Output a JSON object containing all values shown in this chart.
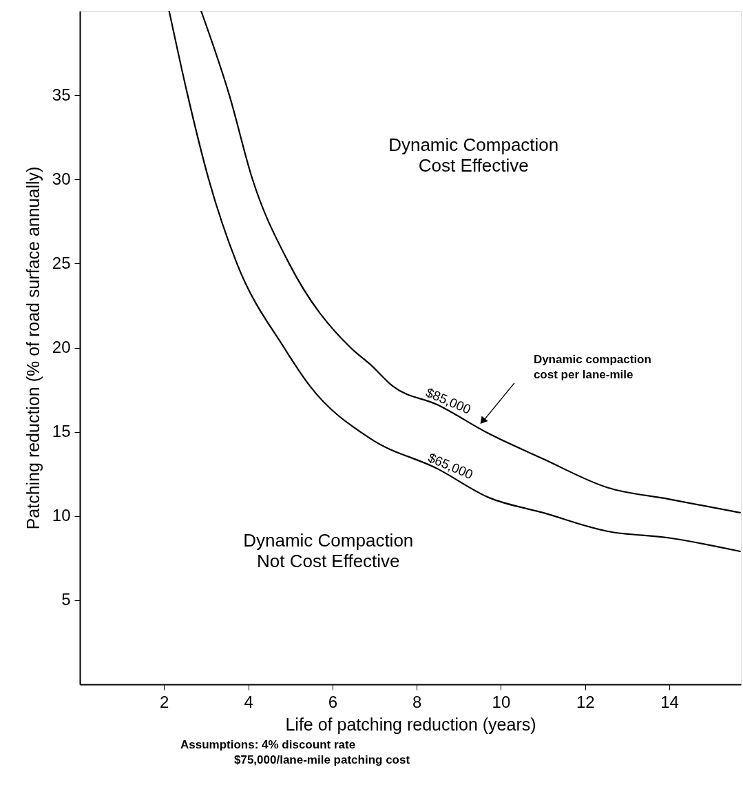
{
  "chart_data": {
    "type": "line",
    "xlabel": "Life of patching reduction (years)",
    "ylabel": "Patching reduction (% of road surface annually)",
    "xlim": [
      0,
      15.7
    ],
    "ylim": [
      0,
      40
    ],
    "xticks": [
      2,
      4,
      6,
      8,
      10,
      12,
      14
    ],
    "yticks": [
      5,
      10,
      15,
      20,
      25,
      30,
      35
    ],
    "grid": false,
    "marker": "none",
    "line_style": "solid",
    "series": [
      {
        "name": "$85,000",
        "color": "#000000",
        "x": [
          2.88,
          3.55,
          4.1,
          4.97,
          6.43,
          6.9,
          7.44,
          8.5,
          9.71,
          11,
          12.52,
          14,
          15.68
        ],
        "values": [
          40,
          35,
          30,
          25,
          20,
          19,
          17.7,
          16.6,
          14.9,
          13.4,
          11.7,
          11,
          10.2
        ]
      },
      {
        "name": "$65,000",
        "color": "#000000",
        "x": [
          2.12,
          2.56,
          3.06,
          3.73,
          4.85,
          5.47,
          6.9,
          8.5,
          9.71,
          11,
          12.52,
          14,
          15.68
        ],
        "values": [
          40,
          35,
          30,
          25,
          20,
          17.7,
          14.6,
          12.8,
          11.1,
          10.2,
          9.1,
          8.7,
          7.9
        ]
      }
    ],
    "annotations": [
      "Dynamic Compaction\nCost Effective",
      "Dynamic Compaction\nNot Cost Effective",
      "Dynamic compaction\ncost per lane-mile",
      "Assumptions: 4% discount rate\n$75,000/lane-mile patching cost"
    ]
  }
}
